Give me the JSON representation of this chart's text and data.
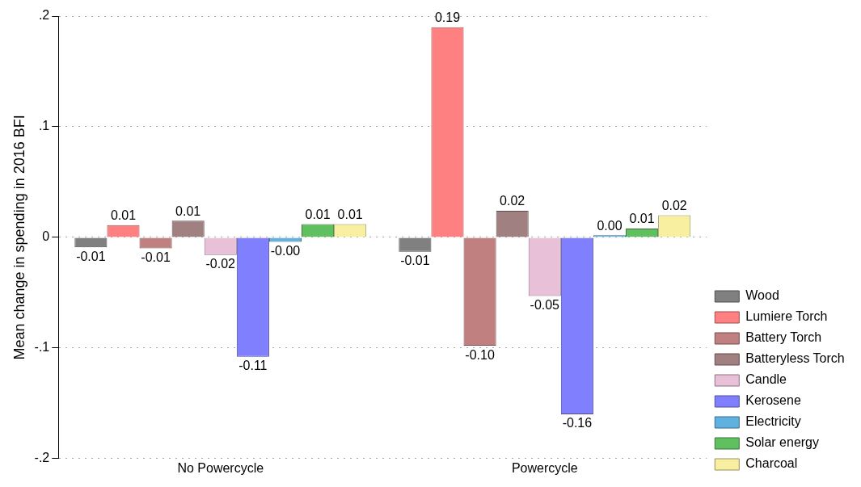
{
  "chart_data": {
    "type": "bar",
    "ylabel": "Mean change in spending in 2016 BFI",
    "categories": [
      "No Powercycle",
      "Powercycle"
    ],
    "series": [
      {
        "name": "Wood",
        "color": "#808080",
        "values": [
          -0.009,
          -0.013
        ],
        "value_labels": [
          "-0.01",
          "-0.01"
        ]
      },
      {
        "name": "Lumiere Torch",
        "color": "#ff8080",
        "values": [
          0.011,
          0.19
        ],
        "value_labels": [
          "0.01",
          "0.19"
        ]
      },
      {
        "name": "Battery Torch",
        "color": "#c08080",
        "values": [
          -0.01,
          -0.098
        ],
        "value_labels": [
          "-0.01",
          "-0.10"
        ]
      },
      {
        "name": "Batteryless Torch",
        "color": "#a08080",
        "values": [
          0.015,
          0.024
        ],
        "value_labels": [
          "0.01",
          "0.02"
        ]
      },
      {
        "name": "Candle",
        "color": "#e8c0d8",
        "values": [
          -0.016,
          -0.053
        ],
        "value_labels": [
          "-0.02",
          "-0.05"
        ]
      },
      {
        "name": "Kerosene",
        "color": "#8080ff",
        "values": [
          -0.108,
          -0.16
        ],
        "value_labels": [
          "-0.11",
          "-0.16"
        ]
      },
      {
        "name": "Electricity",
        "color": "#60b0e0",
        "values": [
          -0.004,
          0.002
        ],
        "value_labels": [
          "-0.00",
          "0.00"
        ]
      },
      {
        "name": "Solar energy",
        "color": "#60c060",
        "values": [
          0.012,
          0.008
        ],
        "value_labels": [
          "0.01",
          "0.01"
        ]
      },
      {
        "name": "Charcoal",
        "color": "#f8f0a0",
        "values": [
          0.012,
          0.02
        ],
        "value_labels": [
          "0.01",
          "0.02"
        ]
      }
    ],
    "ylim": [
      -0.2,
      0.2
    ],
    "yticks": [
      {
        "value": -0.2,
        "label": "-.2"
      },
      {
        "value": -0.1,
        "label": "-.1"
      },
      0,
      {
        "value": 0.1,
        "label": ".1"
      },
      {
        "value": 0.2,
        "label": ".2"
      }
    ],
    "grid": "y",
    "legend": "right"
  }
}
